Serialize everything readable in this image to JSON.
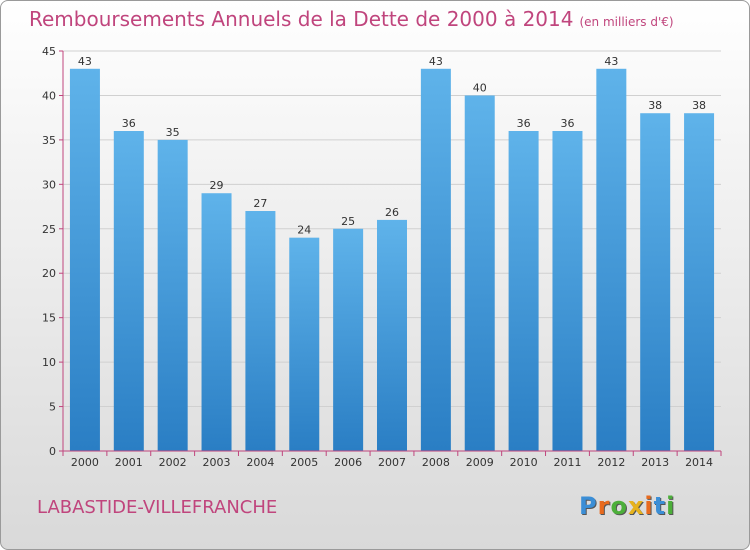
{
  "title": {
    "main": "Remboursements Annuels de la Dette de 2000 à 2014",
    "unit": "(en milliers d'€)"
  },
  "city": "LABASTIDE-VILLEFRANCHE",
  "logo": {
    "letters": [
      "P",
      "r",
      "o",
      "x",
      "i",
      "t",
      "i"
    ],
    "colors": [
      "#3b8ed6",
      "#e86a1e",
      "#4caf3a",
      "#e6b21c",
      "#e86a1e",
      "#3b8ed6",
      "#4caf3a"
    ]
  },
  "colors": {
    "bar_light": "#5fb3ea",
    "bar_dark": "#2a7ec4",
    "axis": "#c0457d",
    "grid": "#d0d0d0"
  },
  "chart_data": {
    "type": "bar",
    "categories": [
      "2000",
      "2001",
      "2002",
      "2003",
      "2004",
      "2005",
      "2006",
      "2007",
      "2008",
      "2009",
      "2010",
      "2011",
      "2012",
      "2013",
      "2014"
    ],
    "values": [
      43,
      36,
      35,
      29,
      27,
      24,
      25,
      26,
      43,
      40,
      36,
      36,
      43,
      38,
      38
    ],
    "data_labels": [
      "43",
      "36",
      "35",
      "29",
      "27",
      "24",
      "25",
      "26",
      "43",
      "40",
      "36",
      "36",
      "43",
      "38",
      "38"
    ],
    "yticks": [
      0,
      5,
      10,
      15,
      20,
      25,
      30,
      35,
      40,
      45
    ],
    "ylim": [
      0,
      45
    ],
    "xlabel": "",
    "ylabel": "",
    "grid": true,
    "legend": "none"
  }
}
